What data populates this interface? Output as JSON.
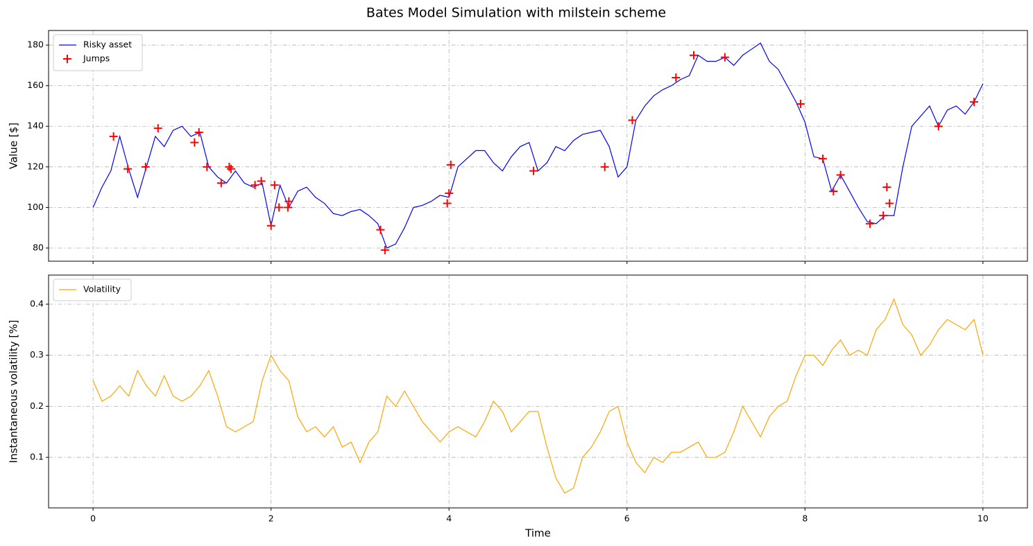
{
  "title": "Bates Model Simulation with milstein scheme",
  "chart_data": [
    {
      "type": "line",
      "ylabel": "Value [$]",
      "legend": "upper left",
      "grid": true,
      "xlim": [
        -0.5,
        10.5
      ],
      "xticks": [
        0,
        2,
        4,
        6,
        8,
        10
      ],
      "ylim": [
        73.5,
        187.2
      ],
      "yticks": [
        80,
        100,
        120,
        140,
        160,
        180
      ],
      "series": [
        {
          "name": "Risky asset",
          "type": "line",
          "color": "#0000ff",
          "x": [
            0,
            0.1,
            0.2,
            0.3,
            0.4,
            0.5,
            0.6,
            0.7,
            0.8,
            0.9,
            1,
            1.1,
            1.2,
            1.3,
            1.4,
            1.5,
            1.6,
            1.7,
            1.8,
            1.9,
            2,
            2.1,
            2.2,
            2.3,
            2.4,
            2.5,
            2.6,
            2.7,
            2.8,
            2.9,
            3,
            3.1,
            3.2,
            3.3,
            3.4,
            3.5,
            3.6,
            3.7,
            3.8,
            3.9,
            4,
            4.1,
            4.2,
            4.3,
            4.4,
            4.5,
            4.6,
            4.7,
            4.8,
            4.9,
            5,
            5.1,
            5.2,
            5.3,
            5.4,
            5.5,
            5.6,
            5.7,
            5.8,
            5.9,
            6,
            6.1,
            6.2,
            6.3,
            6.4,
            6.5,
            6.6,
            6.7,
            6.8,
            6.9,
            7,
            7.1,
            7.2,
            7.3,
            7.4,
            7.5,
            7.6,
            7.7,
            7.8,
            7.9,
            8,
            8.1,
            8.2,
            8.3,
            8.4,
            8.5,
            8.6,
            8.7,
            8.8,
            8.9,
            9,
            9.1,
            9.2,
            9.3,
            9.4,
            9.5,
            9.6,
            9.7,
            9.8,
            9.9,
            10
          ],
          "values": [
            100,
            110,
            118,
            135,
            119,
            105,
            120,
            135,
            130,
            138,
            140,
            135,
            137,
            120,
            115,
            112,
            118,
            112,
            110,
            112,
            91,
            111,
            100,
            108,
            110,
            105,
            102,
            97,
            96,
            98,
            99,
            96,
            92,
            80,
            82,
            90,
            100,
            101,
            103,
            106,
            105,
            120,
            124,
            128,
            128,
            122,
            118,
            125,
            130,
            132,
            118,
            122,
            130,
            128,
            133,
            136,
            137,
            138,
            130,
            115,
            120,
            143,
            150,
            155,
            158,
            160,
            163,
            165,
            175,
            172,
            172,
            174,
            170,
            175,
            178,
            181,
            172,
            168,
            160,
            152,
            142,
            125,
            124,
            108,
            116,
            108,
            100,
            93,
            92,
            96,
            96,
            120,
            140,
            145,
            150,
            140,
            148,
            150,
            146,
            152,
            161
          ]
        },
        {
          "name": "Jumps",
          "type": "scatter",
          "marker": "+",
          "color": "#ff0000",
          "x": [
            0.23,
            0.39,
            0.59,
            0.73,
            1.14,
            1.19,
            1.28,
            1.44,
            1.53,
            1.55,
            1.82,
            1.89,
            2.0,
            2.04,
            2.09,
            2.19,
            2.2,
            3.23,
            3.28,
            3.98,
            4.0,
            4.02,
            4.95,
            5.75,
            6.06,
            6.55,
            6.75,
            7.1,
            7.95,
            8.2,
            8.32,
            8.4,
            8.73,
            8.88,
            8.92,
            8.95,
            9.5,
            9.9
          ],
          "values": [
            135,
            119,
            120,
            139,
            132,
            137,
            120,
            112,
            120,
            119,
            111,
            113,
            91,
            111,
            100,
            100,
            103,
            89,
            79,
            102,
            107,
            121,
            118,
            120,
            143,
            164,
            175,
            174,
            151,
            124,
            108,
            116,
            92,
            96,
            110,
            102,
            140,
            152
          ]
        }
      ]
    },
    {
      "type": "line",
      "xlabel": "Time",
      "ylabel": "Instantaneous volatility [%]",
      "legend": "upper left",
      "grid": true,
      "xlim": [
        -0.5,
        10.5
      ],
      "xticks": [
        0,
        2,
        4,
        6,
        8,
        10
      ],
      "ylim": [
        0.001,
        0.457
      ],
      "yticks": [
        0.1,
        0.2,
        0.3,
        0.4
      ],
      "series": [
        {
          "name": "Volatility",
          "type": "line",
          "color": "#ffa500",
          "x": [
            0,
            0.1,
            0.2,
            0.3,
            0.4,
            0.5,
            0.6,
            0.7,
            0.8,
            0.9,
            1,
            1.1,
            1.2,
            1.3,
            1.4,
            1.5,
            1.6,
            1.7,
            1.8,
            1.9,
            2,
            2.1,
            2.2,
            2.3,
            2.4,
            2.5,
            2.6,
            2.7,
            2.8,
            2.9,
            3,
            3.1,
            3.2,
            3.3,
            3.4,
            3.5,
            3.6,
            3.7,
            3.8,
            3.9,
            4,
            4.1,
            4.2,
            4.3,
            4.4,
            4.5,
            4.6,
            4.7,
            4.8,
            4.9,
            5,
            5.1,
            5.2,
            5.3,
            5.4,
            5.5,
            5.6,
            5.7,
            5.8,
            5.9,
            6,
            6.1,
            6.2,
            6.3,
            6.4,
            6.5,
            6.6,
            6.7,
            6.8,
            6.9,
            7,
            7.1,
            7.2,
            7.3,
            7.4,
            7.5,
            7.6,
            7.7,
            7.8,
            7.9,
            8,
            8.1,
            8.2,
            8.3,
            8.4,
            8.5,
            8.6,
            8.7,
            8.8,
            8.9,
            9,
            9.1,
            9.2,
            9.3,
            9.4,
            9.5,
            9.6,
            9.7,
            9.8,
            9.9,
            10
          ],
          "values": [
            0.25,
            0.21,
            0.22,
            0.24,
            0.22,
            0.27,
            0.24,
            0.22,
            0.26,
            0.22,
            0.21,
            0.22,
            0.24,
            0.27,
            0.22,
            0.16,
            0.15,
            0.16,
            0.17,
            0.25,
            0.3,
            0.27,
            0.25,
            0.18,
            0.15,
            0.16,
            0.14,
            0.16,
            0.12,
            0.13,
            0.09,
            0.13,
            0.15,
            0.22,
            0.2,
            0.23,
            0.2,
            0.17,
            0.15,
            0.13,
            0.15,
            0.16,
            0.15,
            0.14,
            0.17,
            0.21,
            0.19,
            0.15,
            0.17,
            0.19,
            0.19,
            0.12,
            0.06,
            0.03,
            0.04,
            0.1,
            0.12,
            0.15,
            0.19,
            0.2,
            0.13,
            0.09,
            0.07,
            0.1,
            0.09,
            0.11,
            0.11,
            0.12,
            0.13,
            0.1,
            0.1,
            0.11,
            0.15,
            0.2,
            0.17,
            0.14,
            0.18,
            0.2,
            0.21,
            0.26,
            0.3,
            0.3,
            0.28,
            0.31,
            0.33,
            0.3,
            0.31,
            0.3,
            0.35,
            0.37,
            0.41,
            0.36,
            0.34,
            0.3,
            0.32,
            0.35,
            0.37,
            0.36,
            0.35,
            0.37,
            0.3
          ]
        }
      ]
    }
  ]
}
